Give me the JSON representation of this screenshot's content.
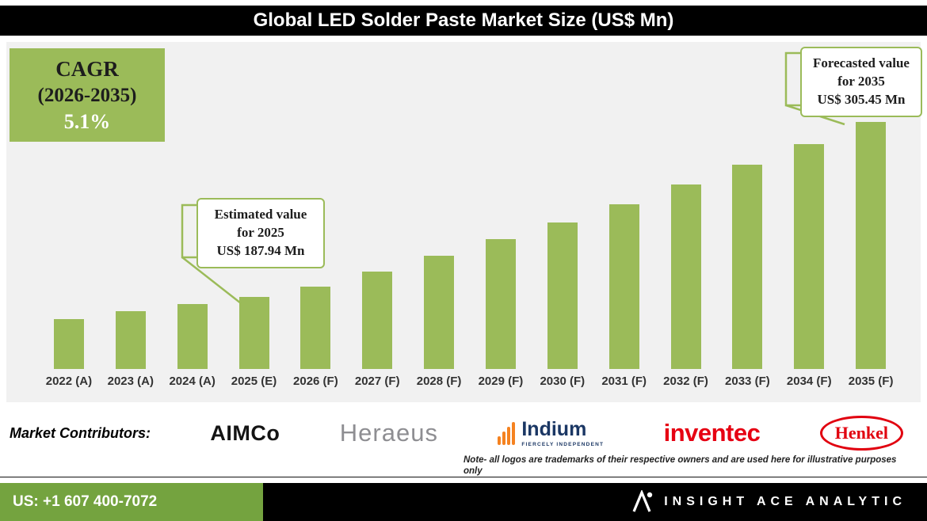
{
  "chart_data": {
    "type": "bar",
    "title": "Global LED Solder Paste Market Size (US$ Mn)",
    "categories": [
      "2022 (A)",
      "2023 (A)",
      "2024 (A)",
      "2025 (E)",
      "2026 (F)",
      "2027 (F)",
      "2028 (F)",
      "2029 (F)",
      "2030 (F)",
      "2031 (F)",
      "2032 (F)",
      "2033 (F)",
      "2034 (F)",
      "2035 (F)"
    ],
    "values": [
      173.5,
      178.5,
      183.5,
      187.94,
      195.23,
      205.18,
      215.65,
      226.65,
      238.21,
      250.35,
      263.12,
      276.54,
      290.64,
      305.45
    ],
    "ylabel": "US$ Mn",
    "ylim": [
      140,
      320
    ],
    "grid": false,
    "legend": "none",
    "bar_color": "#9BBB59",
    "cagr": {
      "label": "CAGR",
      "period": "(2026-2035)",
      "value": "5.1%"
    },
    "annotations": [
      {
        "target": "2025 (E)",
        "lines": [
          "Estimated value",
          "for 2025",
          "US$ 187.94 Mn"
        ]
      },
      {
        "target": "2035 (F)",
        "lines": [
          "Forecasted value",
          "for 2035",
          "US$ 305.45 Mn"
        ]
      }
    ]
  },
  "contributors": {
    "label": "Market Contributors:",
    "logos": [
      {
        "name": "AIMCo",
        "text": "AIMCo"
      },
      {
        "name": "Heraeus",
        "text": "Heraeus"
      },
      {
        "name": "Indium",
        "text": "Indium",
        "tagline": "FIERCELY INDEPENDENT"
      },
      {
        "name": "Inventec",
        "text": "inventec"
      },
      {
        "name": "Henkel",
        "text": "Henkel"
      }
    ],
    "note": "Note- all logos are trademarks of their respective owners and are used here for illustrative purposes only"
  },
  "footer": {
    "phone": "US: +1 607 400-7072",
    "brand": "INSIGHT ACE ANALYTIC"
  },
  "colors": {
    "bar_green": "#9BBB59",
    "footer_green": "#74A33F",
    "panel_gray": "#F1F1F1",
    "title_bg": "#000000",
    "henkel_red": "#E1000F",
    "inventec_red": "#E60012",
    "indium_navy": "#1B3764",
    "indium_orange": "#F58220",
    "heraeus_gray": "#8E8E92"
  }
}
